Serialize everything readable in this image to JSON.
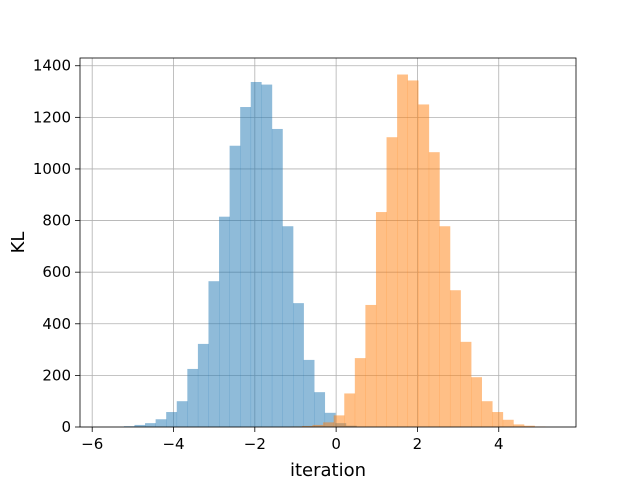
{
  "chart_data": {
    "type": "bar",
    "subtype": "overlapping-histogram",
    "xlabel": "iteration",
    "ylabel": "KL",
    "xlim": [
      -6.3,
      5.9
    ],
    "ylim": [
      0,
      1430
    ],
    "xticks": [
      -6,
      -4,
      -2,
      0,
      2,
      4
    ],
    "yticks": [
      0,
      200,
      400,
      600,
      800,
      1000,
      1200,
      1400
    ],
    "grid": true,
    "series": [
      {
        "color": "#1f77b4",
        "opacity": 0.5,
        "bin_width": 0.26,
        "bins": [
          {
            "x0": -5.22,
            "count": 3
          },
          {
            "x0": -4.96,
            "count": 8
          },
          {
            "x0": -4.7,
            "count": 15
          },
          {
            "x0": -4.44,
            "count": 30
          },
          {
            "x0": -4.18,
            "count": 58
          },
          {
            "x0": -3.92,
            "count": 100
          },
          {
            "x0": -3.66,
            "count": 225
          },
          {
            "x0": -3.4,
            "count": 322
          },
          {
            "x0": -3.14,
            "count": 565
          },
          {
            "x0": -2.88,
            "count": 815
          },
          {
            "x0": -2.62,
            "count": 1090
          },
          {
            "x0": -2.36,
            "count": 1240
          },
          {
            "x0": -2.1,
            "count": 1337
          },
          {
            "x0": -1.84,
            "count": 1327
          },
          {
            "x0": -1.58,
            "count": 1155
          },
          {
            "x0": -1.32,
            "count": 778
          },
          {
            "x0": -1.06,
            "count": 480
          },
          {
            "x0": -0.8,
            "count": 260
          },
          {
            "x0": -0.54,
            "count": 135
          },
          {
            "x0": -0.28,
            "count": 55
          },
          {
            "x0": -0.02,
            "count": 15
          },
          {
            "x0": 0.24,
            "count": 5
          }
        ]
      },
      {
        "color": "#ff7f0e",
        "opacity": 0.5,
        "bin_width": 0.26,
        "bins": [
          {
            "x0": -1.1,
            "count": 2
          },
          {
            "x0": -0.84,
            "count": 4
          },
          {
            "x0": -0.58,
            "count": 8
          },
          {
            "x0": -0.32,
            "count": 18
          },
          {
            "x0": -0.06,
            "count": 45
          },
          {
            "x0": 0.2,
            "count": 130
          },
          {
            "x0": 0.46,
            "count": 267
          },
          {
            "x0": 0.72,
            "count": 473
          },
          {
            "x0": 0.98,
            "count": 833
          },
          {
            "x0": 1.24,
            "count": 1123
          },
          {
            "x0": 1.5,
            "count": 1366
          },
          {
            "x0": 1.76,
            "count": 1343
          },
          {
            "x0": 2.02,
            "count": 1250
          },
          {
            "x0": 2.28,
            "count": 1065
          },
          {
            "x0": 2.54,
            "count": 778
          },
          {
            "x0": 2.8,
            "count": 530
          },
          {
            "x0": 3.06,
            "count": 330
          },
          {
            "x0": 3.32,
            "count": 193
          },
          {
            "x0": 3.58,
            "count": 100
          },
          {
            "x0": 3.84,
            "count": 58
          },
          {
            "x0": 4.1,
            "count": 28
          },
          {
            "x0": 4.36,
            "count": 10
          },
          {
            "x0": 4.62,
            "count": 5
          },
          {
            "x0": 4.88,
            "count": 2
          }
        ]
      }
    ]
  }
}
